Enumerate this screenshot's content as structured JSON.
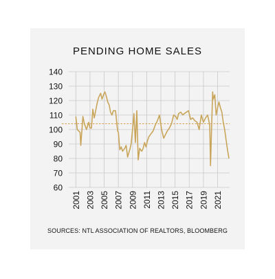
{
  "chart_data": {
    "type": "line",
    "title": "PENDING HOME SALES",
    "source": "SOURCES: NTL ASSOCIATION OF REALTORS, BLOOMBERG",
    "xlabel": "",
    "ylabel": "",
    "ylim": [
      60,
      140
    ],
    "yticks": [
      60,
      70,
      80,
      90,
      100,
      110,
      120,
      130,
      140
    ],
    "xlim": [
      2000,
      2022.7
    ],
    "xticks": [
      2001,
      2003,
      2005,
      2007,
      2009,
      2011,
      2013,
      2015,
      2017,
      2019,
      2021
    ],
    "reference_line": 104,
    "grid": true,
    "legend": "none",
    "colors": {
      "line": "#c9a55a",
      "reference": "#d59a4c",
      "grid": "#c8c8c8"
    },
    "series": [
      {
        "x": [
          2001.0,
          2001.2,
          2001.4,
          2001.6,
          2001.7,
          2002.0,
          2002.2,
          2002.5,
          2002.8,
          2003.0,
          2003.2,
          2003.4,
          2003.6,
          2003.8,
          2004.0,
          2004.2,
          2004.5,
          2004.7,
          2004.9,
          2005.1,
          2005.3,
          2005.5,
          2005.7,
          2005.9,
          2006.1,
          2006.3,
          2006.6,
          2006.9,
          2007.0,
          2007.2,
          2007.4,
          2007.6,
          2007.9,
          2008.1,
          2008.3,
          2008.6,
          2008.8,
          2009.0,
          2009.2,
          2009.4,
          2009.6,
          2009.8,
          2010.0,
          2010.3,
          2010.5,
          2010.7,
          2010.9,
          2011.1,
          2011.3,
          2011.6,
          2011.9,
          2012.2,
          2012.5,
          2012.8,
          2013.1,
          2013.4,
          2013.6,
          2013.9,
          2014.2,
          2014.5,
          2014.8,
          2015.1,
          2015.3,
          2015.5,
          2015.8,
          2016.1,
          2016.3,
          2016.6,
          2016.9,
          2017.2,
          2017.5,
          2017.8,
          2018.1,
          2018.4,
          2018.7,
          2019.0,
          2019.3,
          2019.6,
          2019.9,
          2020.0,
          2020.3,
          2020.4,
          2020.6,
          2020.8,
          2021.0,
          2021.2,
          2021.4,
          2021.6,
          2021.8,
          2022.0,
          2022.2,
          2022.4,
          2022.6
        ],
        "y": [
          109,
          100,
          99,
          98,
          89,
          109,
          104,
          100,
          105,
          101,
          101,
          114,
          108,
          113,
          118,
          122,
          125,
          121,
          124,
          126,
          123,
          119,
          117,
          112,
          110,
          113,
          113,
          99,
          98,
          86,
          88,
          85,
          87,
          89,
          81,
          86,
          90,
          100,
          111,
          91,
          113,
          79,
          87,
          85,
          87,
          91,
          88,
          92,
          95,
          97,
          99,
          103,
          106,
          110,
          100,
          94,
          96,
          99,
          101,
          104,
          110,
          109,
          107,
          111,
          112,
          110,
          111,
          112,
          113,
          107,
          108,
          106,
          105,
          100,
          110,
          105,
          108,
          110,
          103,
          75,
          126,
          121,
          124,
          110,
          115,
          119,
          115,
          112,
          105,
          100,
          93,
          86,
          80
        ]
      }
    ]
  }
}
